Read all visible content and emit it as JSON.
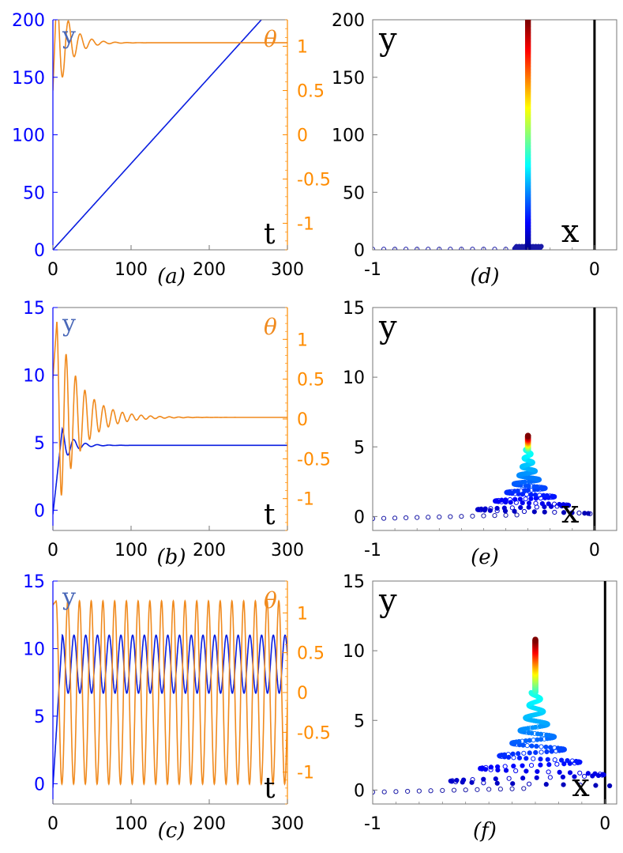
{
  "colors": {
    "blue": "#0a1ee0",
    "orange": "#f08a1e",
    "axis_blue": "#0000ff",
    "axis_orange": "#ff8c00",
    "y_label_blue": "#4a68b8",
    "black": "#000000"
  },
  "chart_data": [
    {
      "type": "line",
      "panel": "(a)",
      "panel_label": "(a)",
      "y_label": "y",
      "theta_label": "θ",
      "x_label": "t",
      "xlim": [
        0,
        300
      ],
      "ylim": [
        0,
        200
      ],
      "y2lim": [
        -1.3,
        1.3
      ],
      "x_ticks": [
        "0",
        "100",
        "200",
        "300"
      ],
      "y_ticks": [
        "0",
        "50",
        "100",
        "150",
        "200"
      ],
      "y2_ticks": [
        "-1",
        "-0.5",
        "0",
        "0.5",
        "1"
      ],
      "series": [
        {
          "name": "y",
          "axis": "left",
          "model": "linear",
          "params": {
            "slope": 0.75,
            "t_end": 300
          }
        },
        {
          "name": "θ",
          "axis": "right",
          "model": "damped",
          "params": {
            "start": 0.5,
            "final": 1.04,
            "amp": 0.6,
            "decay": 0.06,
            "period": 15,
            "t0": 5
          }
        }
      ]
    },
    {
      "type": "line",
      "panel": "(b)",
      "panel_label": "(b)",
      "y_label": "y",
      "theta_label": "θ",
      "x_label": "t",
      "xlim": [
        0,
        300
      ],
      "ylim": [
        -1.5,
        15
      ],
      "y2lim": [
        -1.4,
        1.4
      ],
      "x_ticks": [
        "0",
        "100",
        "200",
        "300"
      ],
      "y_ticks": [
        "0",
        "5",
        "10",
        "15"
      ],
      "y2_ticks": [
        "-1",
        "-0.5",
        "0",
        "0.5",
        "1"
      ],
      "series": [
        {
          "name": "y",
          "axis": "left",
          "model": "damped",
          "params": {
            "start": -0.3,
            "final": 4.8,
            "amp": 1.2,
            "decay": 0.07,
            "period": 15,
            "t0": 12
          }
        },
        {
          "name": "θ",
          "axis": "right",
          "model": "damped",
          "params": {
            "start": 0.5,
            "final": 0.02,
            "amp": 1.2,
            "decay": 0.035,
            "period": 12,
            "t0": 5
          }
        }
      ]
    },
    {
      "type": "line",
      "panel": "(c)",
      "panel_label": "(c)",
      "y_label": "y",
      "theta_label": "θ",
      "x_label": "t",
      "xlim": [
        0,
        300
      ],
      "ylim": [
        -1.5,
        15
      ],
      "y2_lim": [
        -1.4,
        1.4
      ],
      "y2lim": [
        -1.4,
        1.4
      ],
      "x_ticks": [
        "0",
        "100",
        "200",
        "300"
      ],
      "y_ticks": [
        "0",
        "5",
        "10",
        "15"
      ],
      "y2_ticks": [
        "-1",
        "-0.5",
        "0",
        "0.5",
        "1"
      ],
      "series": [
        {
          "name": "y",
          "axis": "left",
          "model": "periodic",
          "params": {
            "start": -0.3,
            "rise_end": 12,
            "mean": 8.85,
            "amp": 2.15,
            "period": 15
          }
        },
        {
          "name": "θ",
          "axis": "right",
          "model": "periodic",
          "params": {
            "start": 1.1,
            "rise_end": 4,
            "mean": 0.0,
            "amp": 1.15,
            "period": 15
          }
        }
      ]
    },
    {
      "type": "scatter",
      "panel": "(d)",
      "panel_label": "(d)",
      "y_label": "y",
      "x_label": "x",
      "xlim": [
        -1,
        0.1
      ],
      "ylim": [
        0,
        200
      ],
      "x_ticks": [
        "-1",
        "0"
      ],
      "y_ticks": [
        "0",
        "50",
        "100",
        "150",
        "200"
      ],
      "trajectory": {
        "x_start": -1.0,
        "x_settle": -0.3,
        "y_top": 200,
        "spiral_amp": 0.0,
        "spiral_ymax": 2
      },
      "wall_x": 0
    },
    {
      "type": "scatter",
      "panel": "(e)",
      "panel_label": "(e)",
      "y_label": "y",
      "x_label": "x",
      "xlim": [
        -1,
        0.1
      ],
      "ylim": [
        -1,
        15
      ],
      "x_ticks": [
        "-1",
        "0"
      ],
      "y_ticks": [
        "0",
        "5",
        "10",
        "15"
      ],
      "trajectory": {
        "x_start": -1.0,
        "x_settle": -0.3,
        "y_top": 5.8,
        "spiral_amp": 0.28,
        "spiral_ymax": 4.8
      },
      "wall_x": 0
    },
    {
      "type": "scatter",
      "panel": "(f)",
      "panel_label": "(f)",
      "y_label": "y",
      "x_label": "x",
      "xlim": [
        -1,
        0.05
      ],
      "ylim": [
        -1,
        15
      ],
      "x_ticks": [
        "-1",
        "0"
      ],
      "y_ticks": [
        "0",
        "5",
        "10",
        "15"
      ],
      "trajectory": {
        "x_start": -1.0,
        "x_settle": -0.3,
        "y_top": 10.8,
        "spiral_amp": 0.45,
        "spiral_ymax": 7.0
      },
      "wall_x": 0
    }
  ]
}
